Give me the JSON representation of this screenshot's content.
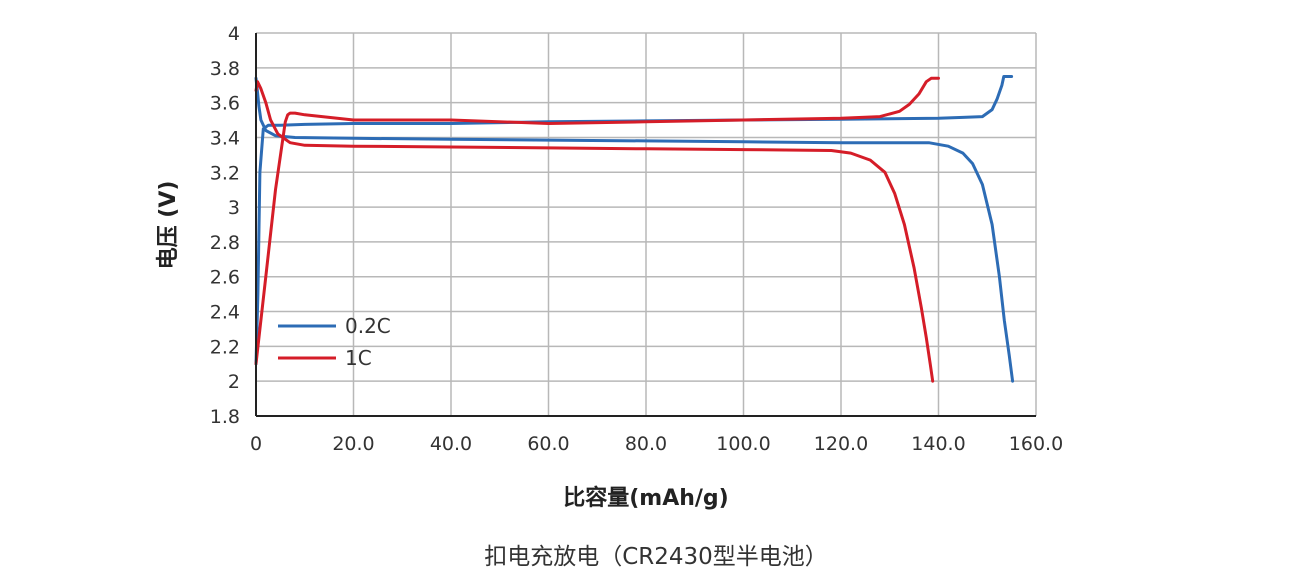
{
  "chart_data": {
    "type": "line",
    "ylabel": "电压 (V)",
    "xlabel": "比容量(mAh/g)",
    "xlim": [
      0,
      160
    ],
    "ylim": [
      1.8,
      4.0
    ],
    "x_ticks": [
      "0",
      "20.0",
      "40.0",
      "60.0",
      "80.0",
      "100.0",
      "120.0",
      "140.0",
      "160.0"
    ],
    "y_ticks": [
      "1.8",
      "2",
      "2.2",
      "2.4",
      "2.6",
      "2.8",
      "3",
      "3.2",
      "3.4",
      "3.6",
      "3.8",
      "4"
    ],
    "grid": true,
    "legend_position": "bottom-left",
    "series": [
      {
        "name": "0.2C",
        "color": "#2d6cb5",
        "curves": [
          {
            "x": [
              0,
              0.4,
              0.8,
              1.5,
              2.5,
              5,
              10,
              20,
              40,
              60,
              80,
              100,
              120,
              140,
              145,
              149,
              151,
              152,
              153,
              153.4,
              153.8,
              154,
              155
            ],
            "y": [
              2.1,
              2.5,
              3.2,
              3.45,
              3.47,
              3.47,
              3.475,
              3.48,
              3.48,
              3.49,
              3.495,
              3.5,
              3.505,
              3.51,
              3.515,
              3.52,
              3.56,
              3.62,
              3.7,
              3.75,
              3.75,
              3.75,
              3.75
            ]
          },
          {
            "x": [
              0,
              0.3,
              0.6,
              1,
              2,
              4,
              8,
              20,
              40,
              60,
              80,
              100,
              120,
              138,
              142,
              145,
              147,
              149,
              151,
              152.5,
              153.5,
              154.5,
              155.2
            ],
            "y": [
              3.74,
              3.66,
              3.58,
              3.5,
              3.44,
              3.41,
              3.4,
              3.395,
              3.39,
              3.385,
              3.38,
              3.375,
              3.37,
              3.37,
              3.35,
              3.31,
              3.25,
              3.13,
              2.9,
              2.6,
              2.35,
              2.15,
              2.0
            ]
          }
        ]
      },
      {
        "name": "1C",
        "color": "#d51d28",
        "curves": [
          {
            "x": [
              0,
              2,
              4,
              6,
              6.5,
              7,
              8,
              10,
              20,
              40,
              60,
              80,
              100,
              120,
              128,
              132,
              134,
              136,
              137.5,
              138.5,
              139,
              140
            ],
            "y": [
              2.1,
              2.6,
              3.1,
              3.49,
              3.53,
              3.54,
              3.54,
              3.53,
              3.5,
              3.5,
              3.48,
              3.49,
              3.5,
              3.51,
              3.52,
              3.55,
              3.59,
              3.65,
              3.72,
              3.74,
              3.74,
              3.74
            ]
          },
          {
            "x": [
              0,
              0.3,
              1,
              2,
              3,
              4.5,
              7,
              10,
              20,
              40,
              60,
              80,
              100,
              118,
              122,
              126,
              129,
              131,
              133,
              135,
              136.5,
              137.5,
              138.3,
              138.8
            ],
            "y": [
              3.67,
              3.72,
              3.68,
              3.6,
              3.5,
              3.42,
              3.37,
              3.355,
              3.35,
              3.345,
              3.34,
              3.335,
              3.33,
              3.325,
              3.31,
              3.27,
              3.2,
              3.08,
              2.9,
              2.65,
              2.42,
              2.25,
              2.1,
              2.0
            ]
          }
        ]
      }
    ]
  },
  "caption": "扣电充放电（CR2430型半电池）"
}
